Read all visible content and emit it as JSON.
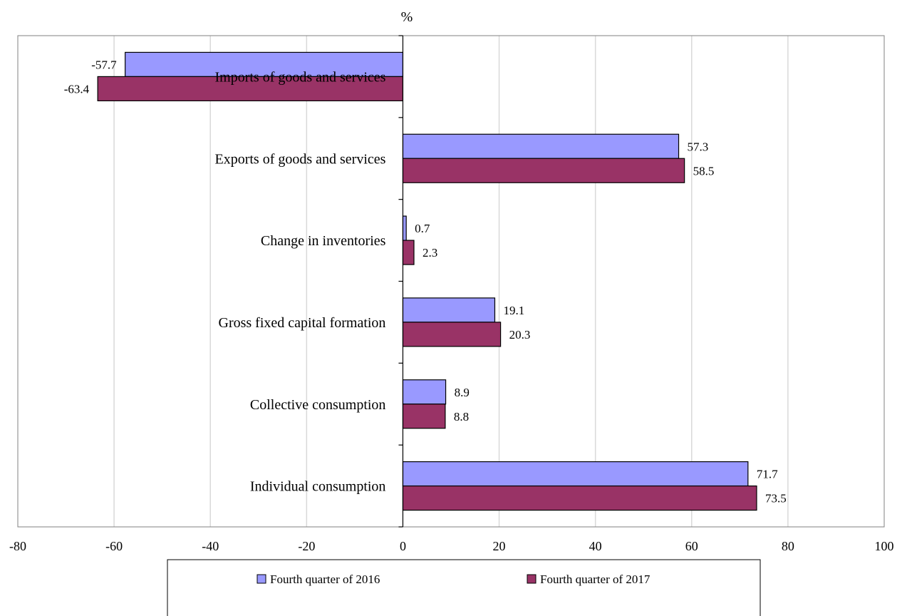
{
  "chart_data": {
    "type": "bar",
    "orientation": "horizontal",
    "ylabel": "%",
    "xlim": [
      -80,
      100
    ],
    "xticks": [
      "-80",
      "-60",
      "-40",
      "-20",
      "0",
      "20",
      "40",
      "60",
      "80",
      "100"
    ],
    "grid": true,
    "legend_position": "bottom",
    "categories": [
      "Imports of goods and services",
      "Exports of goods and services",
      "Change in inventories",
      "Gross fixed capital formation",
      "Collective consumption",
      "Individual consumption"
    ],
    "series": [
      {
        "name": "Fourth quarter of 2016",
        "color": "#9999ff",
        "values": [
          -57.7,
          57.3,
          0.7,
          19.1,
          8.9,
          71.7
        ],
        "labels": [
          "-57.7",
          "57.3",
          "0.7",
          "19.1",
          "8.9",
          "71.7"
        ]
      },
      {
        "name": "Fourth quarter of 2017",
        "color": "#993366",
        "values": [
          -63.4,
          58.5,
          2.3,
          20.3,
          8.8,
          73.5
        ],
        "labels": [
          "-63.4",
          "58.5",
          "2.3",
          "20.3",
          "8.8",
          "73.5"
        ]
      }
    ]
  }
}
